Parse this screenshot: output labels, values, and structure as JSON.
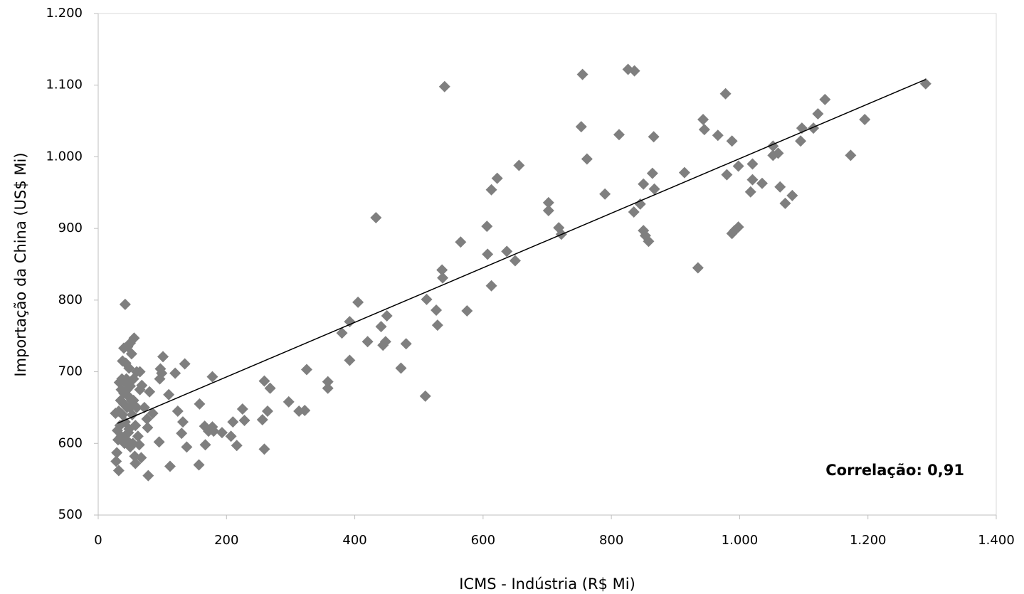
{
  "chart_data": {
    "type": "scatter",
    "xlabel": "ICMS - Indústria (R$ Mi)",
    "ylabel": "Importação da China (US$ Mi)",
    "annotation": "Correlação: 0,91",
    "xlim": [
      0,
      1400
    ],
    "xticks": [
      0,
      200,
      400,
      600,
      800,
      {
        "value": 1000,
        "label": "1.000"
      },
      {
        "value": 1200,
        "label": "1.200"
      },
      {
        "value": 1400,
        "label": "1.400"
      }
    ],
    "ylim": [
      500,
      1200
    ],
    "yticks": [
      500,
      600,
      700,
      800,
      900,
      {
        "value": 1000,
        "label": "1.000"
      },
      {
        "value": 1100,
        "label": "1.100"
      },
      {
        "value": 1200,
        "label": "1.200"
      }
    ],
    "trendline": {
      "x": [
        30,
        1290
      ],
      "y": [
        628,
        1108
      ],
      "color": "#000000"
    },
    "series": [
      {
        "color": "#7f7f7f",
        "x": [
          1290,
          1195,
          1173,
          1133,
          1122,
          1115,
          1097,
          1095,
          1082,
          1071,
          1063,
          1060,
          1052,
          1052,
          1035,
          1020,
          1020,
          1017,
          998,
          998,
          992,
          988,
          988,
          980,
          978,
          966,
          945,
          943,
          935,
          914,
          867,
          866,
          864,
          858,
          853,
          850,
          850,
          845,
          835,
          836,
          826,
          812,
          790,
          762,
          755,
          753,
          722,
          718,
          702,
          702,
          656,
          650,
          637,
          622,
          613,
          613,
          607,
          606,
          575,
          565,
          540,
          536,
          537,
          529,
          527,
          512,
          510,
          480,
          472,
          450,
          448,
          444,
          441,
          433,
          420,
          405,
          392,
          392,
          380,
          358,
          358,
          325,
          322,
          313,
          297,
          268,
          264,
          259,
          259,
          256,
          228,
          225,
          216,
          210,
          207,
          193,
          180,
          178,
          178,
          172,
          167,
          166,
          158,
          157,
          138,
          135,
          132,
          130,
          124,
          120,
          112,
          110,
          101,
          99,
          97,
          96,
          95,
          85,
          80,
          78,
          77,
          76,
          72,
          68,
          67,
          65,
          64,
          60,
          58,
          57,
          56,
          55,
          52,
          52,
          50,
          50,
          48,
          48,
          46,
          45,
          44,
          43,
          42,
          42,
          41,
          40,
          40,
          38,
          38,
          37,
          36,
          35,
          34,
          33,
          32,
          32,
          31,
          30,
          29,
          28,
          27,
          45,
          50,
          55,
          47,
          53,
          58,
          62,
          40,
          44,
          60,
          50,
          36,
          65,
          54,
          48,
          42
        ],
        "values": [
          1102,
          1052,
          1002,
          1080,
          1060,
          1040,
          1040,
          1022,
          946,
          935,
          958,
          1005,
          1002,
          1015,
          963,
          990,
          968,
          951,
          987,
          902,
          897,
          893,
          1022,
          975,
          1088,
          1030,
          1038,
          1052,
          845,
          978,
          955,
          1028,
          977,
          882,
          890,
          897,
          962,
          934,
          923,
          1120,
          1122,
          1031,
          948,
          997,
          1115,
          1042,
          892,
          901,
          925,
          936,
          988,
          855,
          868,
          970,
          954,
          820,
          864,
          903,
          785,
          881,
          1098,
          842,
          831,
          765,
          786,
          801,
          666,
          739,
          705,
          778,
          742,
          737,
          763,
          915,
          742,
          797,
          770,
          716,
          754,
          686,
          677,
          703,
          646,
          645,
          658,
          677,
          645,
          687,
          592,
          633,
          632,
          648,
          597,
          630,
          610,
          615,
          617,
          693,
          623,
          617,
          598,
          624,
          655,
          570,
          595,
          711,
          630,
          614,
          645,
          698,
          568,
          668,
          721,
          698,
          704,
          690,
          602,
          642,
          672,
          555,
          622,
          634,
          650,
          681,
          580,
          675,
          598,
          700,
          572,
          582,
          747,
          690,
          725,
          660,
          740,
          680,
          705,
          620,
          735,
          650,
          690,
          712,
          630,
          794,
          600,
          733,
          670,
          715,
          640,
          690,
          610,
          660,
          625,
          685,
          562,
          645,
          605,
          618,
          587,
          575,
          642,
          675,
          650,
          660,
          615,
          640,
          625,
          610,
          655,
          605,
          650,
          595,
          675,
          700,
          600,
          665,
          685
        ]
      }
    ]
  }
}
